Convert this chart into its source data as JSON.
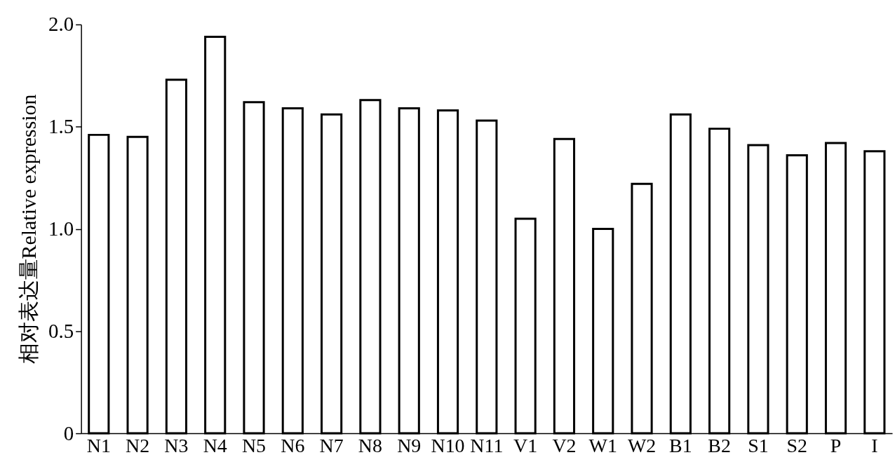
{
  "chart_data": {
    "type": "bar",
    "ylabel": "相对表达量Relative expression",
    "categories": [
      "N1",
      "N2",
      "N3",
      "N4",
      "N5",
      "N6",
      "N7",
      "N8",
      "N9",
      "N10",
      "N11",
      "V1",
      "V2",
      "W1",
      "W2",
      "B1",
      "B2",
      "S1",
      "S2",
      "P",
      "I"
    ],
    "values": [
      1.46,
      1.45,
      1.73,
      1.94,
      1.62,
      1.59,
      1.56,
      1.63,
      1.59,
      1.58,
      1.53,
      1.05,
      1.44,
      1.0,
      1.22,
      1.56,
      1.49,
      1.41,
      1.36,
      1.42,
      1.38
    ],
    "color": "#ffffff",
    "ylim": [
      0,
      2.0
    ],
    "yticks": [
      0,
      0.5,
      {
        "value": 1.0,
        "label": "1.0"
      },
      1.5,
      {
        "value": 2.0,
        "label": "2.0"
      }
    ],
    "grid": false
  }
}
